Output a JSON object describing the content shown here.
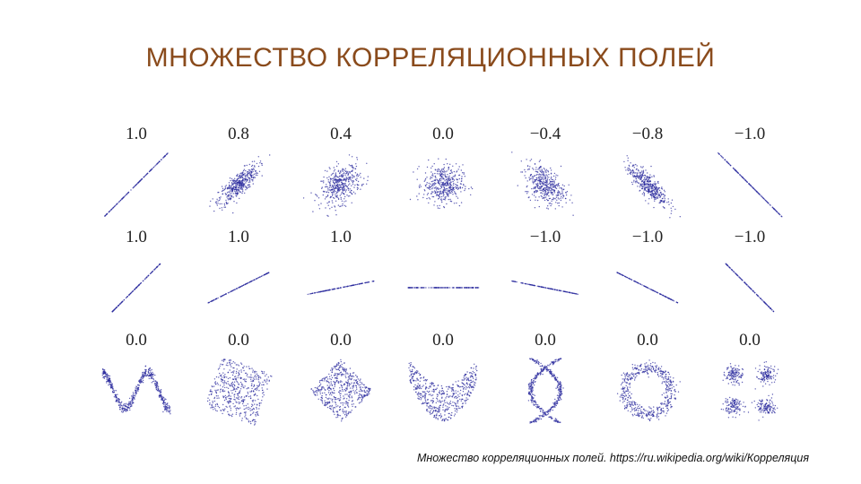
{
  "title": "МНОЖЕСТВО КОРРЕЛЯЦИОННЫХ ПОЛЕЙ",
  "caption": "Множество корреляционных полей. https://ru.wikipedia.org/wiki/Корреляция",
  "dot_color": "#2b2b9e",
  "panels": [
    {
      "label": "1.0",
      "type": "corr",
      "r": 1.0,
      "spread": 1.0
    },
    {
      "label": "0.8",
      "type": "corr",
      "r": 0.8,
      "spread": 1.0
    },
    {
      "label": "0.4",
      "type": "corr",
      "r": 0.4,
      "spread": 1.0
    },
    {
      "label": "0.0",
      "type": "corr",
      "r": 0.0,
      "spread": 1.0
    },
    {
      "label": "−0.4",
      "type": "corr",
      "r": -0.4,
      "spread": 1.0
    },
    {
      "label": "−0.8",
      "type": "corr",
      "r": -0.8,
      "spread": 1.0
    },
    {
      "label": "−1.0",
      "type": "corr",
      "r": -1.0,
      "spread": 1.0
    },
    {
      "label": "1.0",
      "type": "line",
      "slope": 1.0
    },
    {
      "label": "1.0",
      "type": "line",
      "slope": 0.5
    },
    {
      "label": "1.0",
      "type": "line",
      "slope": 0.2
    },
    {
      "label": "",
      "type": "line",
      "slope": 0.0
    },
    {
      "label": "−1.0",
      "type": "line",
      "slope": -0.2
    },
    {
      "label": "−1.0",
      "type": "line",
      "slope": -0.5
    },
    {
      "label": "−1.0",
      "type": "line",
      "slope": -1.0
    },
    {
      "label": "0.0",
      "type": "wave"
    },
    {
      "label": "0.0",
      "type": "square"
    },
    {
      "label": "0.0",
      "type": "diamond"
    },
    {
      "label": "0.0",
      "type": "parabola"
    },
    {
      "label": "0.0",
      "type": "cross"
    },
    {
      "label": "0.0",
      "type": "ring"
    },
    {
      "label": "0.0",
      "type": "clusters"
    }
  ]
}
